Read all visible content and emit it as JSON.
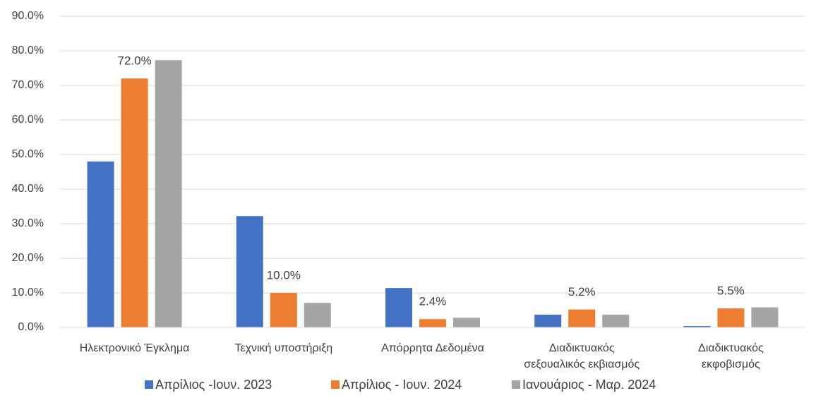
{
  "chart_data": {
    "type": "bar",
    "categories": [
      "Ηλεκτρονικό Έγκλημα",
      "Τεχνική υποστήριξη",
      "Απόρρητα Δεδομένα",
      "Διαδικτυακός\nσεξουαλικός εκβιασμός",
      "Διαδικτυακός\nεκφοβισμός"
    ],
    "series": [
      {
        "name": "Απρίλιος -Ιουν. 2023",
        "color": "#4472c4",
        "values": [
          48.0,
          32.2,
          11.4,
          3.7,
          0.4
        ]
      },
      {
        "name": "Απρίλιος - Ιουν. 2024",
        "color": "#ed7d31",
        "values": [
          72.0,
          10.0,
          2.4,
          5.2,
          5.5
        ],
        "value_labels": [
          "72.0%",
          "10.0%",
          "2.4%",
          "5.2%",
          "5.5%"
        ]
      },
      {
        "name": "Ιανουάριος - Μαρ. 2024",
        "color": "#a5a5a5",
        "values": [
          77.3,
          7.1,
          2.8,
          3.7,
          5.8
        ]
      }
    ],
    "ylim": [
      0,
      90
    ],
    "yticks": [
      {
        "value": 0,
        "label": "0.0%"
      },
      {
        "value": 10,
        "label": "10.0%"
      },
      {
        "value": 20,
        "label": "20.0%"
      },
      {
        "value": 30,
        "label": "30.0%"
      },
      {
        "value": 40,
        "label": "40.0%"
      },
      {
        "value": 50,
        "label": "50.0%"
      },
      {
        "value": 60,
        "label": "60.0%"
      },
      {
        "value": 70,
        "label": "70.0%"
      },
      {
        "value": 80,
        "label": "80.0%"
      },
      {
        "value": 90,
        "label": "90.0%"
      }
    ],
    "grid": true,
    "legend": "bottom"
  }
}
